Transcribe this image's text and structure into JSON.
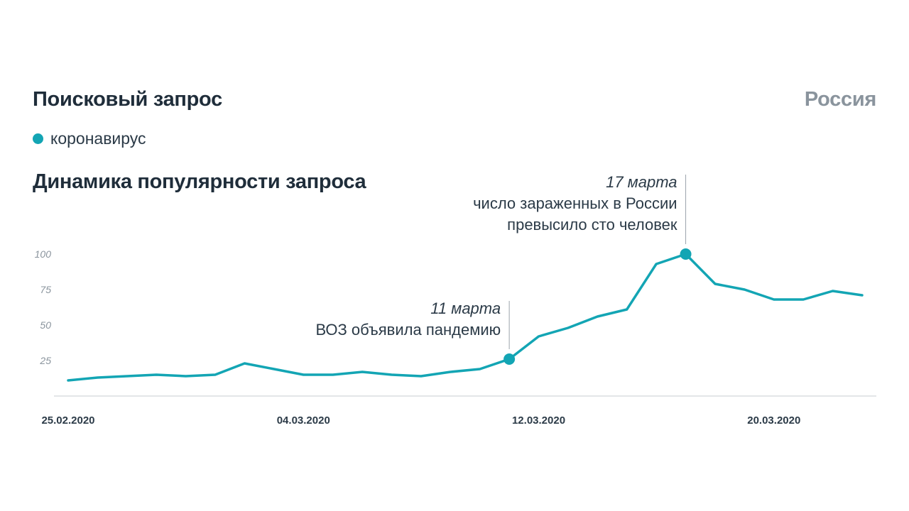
{
  "header": {
    "query_title": "Поисковый запрос",
    "region": "Россия"
  },
  "legend": {
    "label": "коронавирус",
    "color": "#13a5b4"
  },
  "chart_title": "Динамика популярности запроса",
  "chart_data": {
    "type": "line",
    "x": [
      "25.02.2020",
      "26.02.2020",
      "27.02.2020",
      "28.02.2020",
      "29.02.2020",
      "01.03.2020",
      "02.03.2020",
      "03.03.2020",
      "04.03.2020",
      "05.03.2020",
      "06.03.2020",
      "07.03.2020",
      "08.03.2020",
      "09.03.2020",
      "10.03.2020",
      "11.03.2020",
      "12.03.2020",
      "13.03.2020",
      "14.03.2020",
      "15.03.2020",
      "16.03.2020",
      "17.03.2020",
      "18.03.2020",
      "19.03.2020",
      "20.03.2020",
      "21.03.2020",
      "22.03.2020",
      "23.03.2020"
    ],
    "series": [
      {
        "name": "коронавирус",
        "color": "#13a5b4",
        "values": [
          11,
          13,
          14,
          15,
          14,
          15,
          23,
          19,
          15,
          15,
          17,
          15,
          14,
          17,
          19,
          26,
          42,
          48,
          56,
          61,
          93,
          100,
          79,
          75,
          68,
          68,
          74,
          71
        ]
      }
    ],
    "ylim": [
      0,
      100
    ],
    "yticks": [
      "25",
      "50",
      "75",
      "100"
    ],
    "xtick_labels": [
      "25.02.2020",
      "04.03.2020",
      "12.03.2020",
      "20.03.2020"
    ],
    "grid": false,
    "annotations": [
      {
        "x": "11.03.2020",
        "value": 26,
        "date_label": "11 марта",
        "lines": [
          "ВОЗ объявила пандемию"
        ]
      },
      {
        "x": "17.03.2020",
        "value": 100,
        "date_label": "17 марта",
        "lines": [
          "число зараженных в России",
          "превысило сто человек"
        ]
      }
    ]
  }
}
